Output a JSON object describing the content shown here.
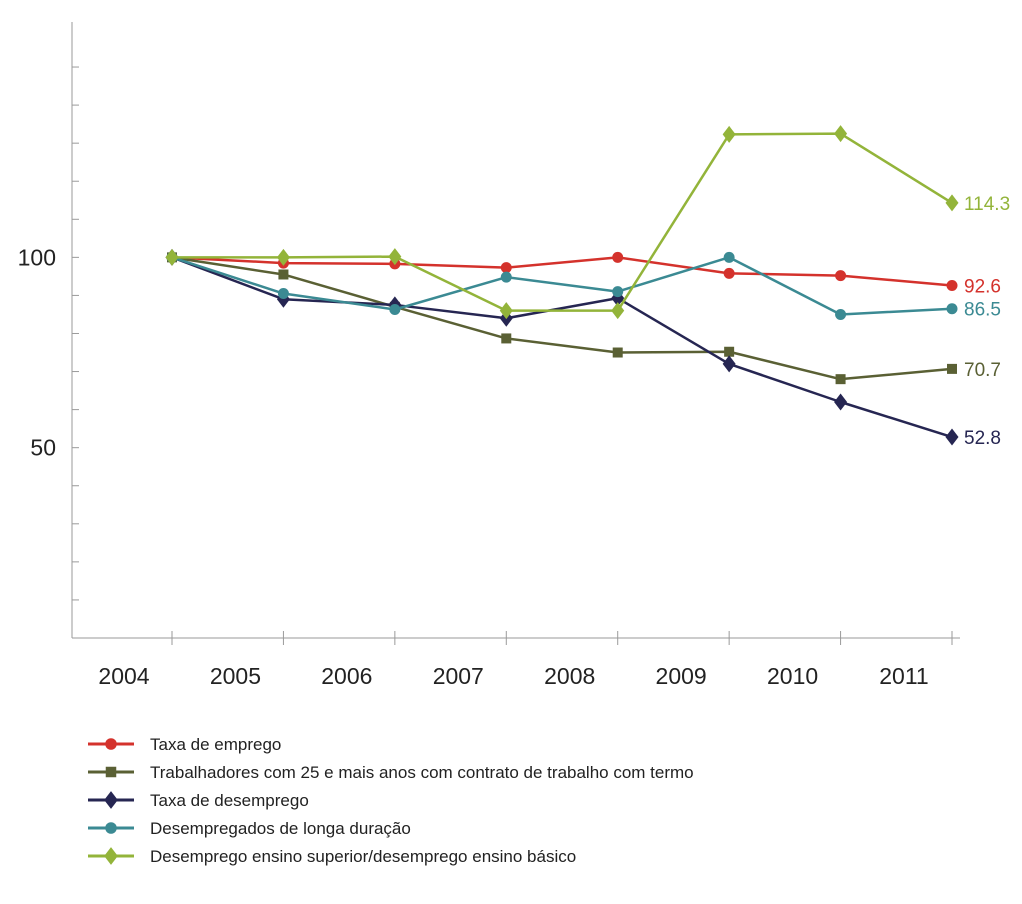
{
  "chart_data": {
    "type": "line",
    "categories": [
      "2004",
      "2005",
      "2006",
      "2007",
      "2008",
      "2009",
      "2010",
      "2011"
    ],
    "ylim": [
      0,
      155
    ],
    "y_ticks_labeled": [
      100,
      50
    ],
    "grid": false,
    "legend_position": "bottom",
    "series": [
      {
        "name": "Taxa de emprego",
        "color": "#d4322c",
        "marker": "circle",
        "values": [
          100,
          98.5,
          98.3,
          97.3,
          100,
          95.8,
          95.2,
          92.6
        ],
        "end_label": "92.6"
      },
      {
        "name": "Trabalhadores com 25 e mais anos com contrato de trabalho com termo",
        "color": "#5a6034",
        "marker": "square",
        "values": [
          100,
          95.5,
          87,
          78.7,
          75,
          75.2,
          68,
          70.7
        ],
        "end_label": "70.7"
      },
      {
        "name": "Taxa de desemprego",
        "color": "#262652",
        "marker": "diamond",
        "values": [
          100,
          89,
          87.5,
          84,
          89.3,
          72,
          62,
          52.8
        ],
        "end_label": "52.8"
      },
      {
        "name": "Desempregados de longa duração",
        "color": "#3b8a93",
        "marker": "circle",
        "values": [
          100,
          90.5,
          86.3,
          94.8,
          91,
          100,
          85,
          86.5
        ],
        "end_label": "86.5"
      },
      {
        "name": "Desemprego ensino superior/desemprego ensino básico",
        "color": "#93b43a",
        "marker": "diamond",
        "values": [
          100,
          100,
          100.2,
          86,
          86,
          132.3,
          132.5,
          114.3
        ],
        "end_label": "114.3"
      }
    ]
  }
}
